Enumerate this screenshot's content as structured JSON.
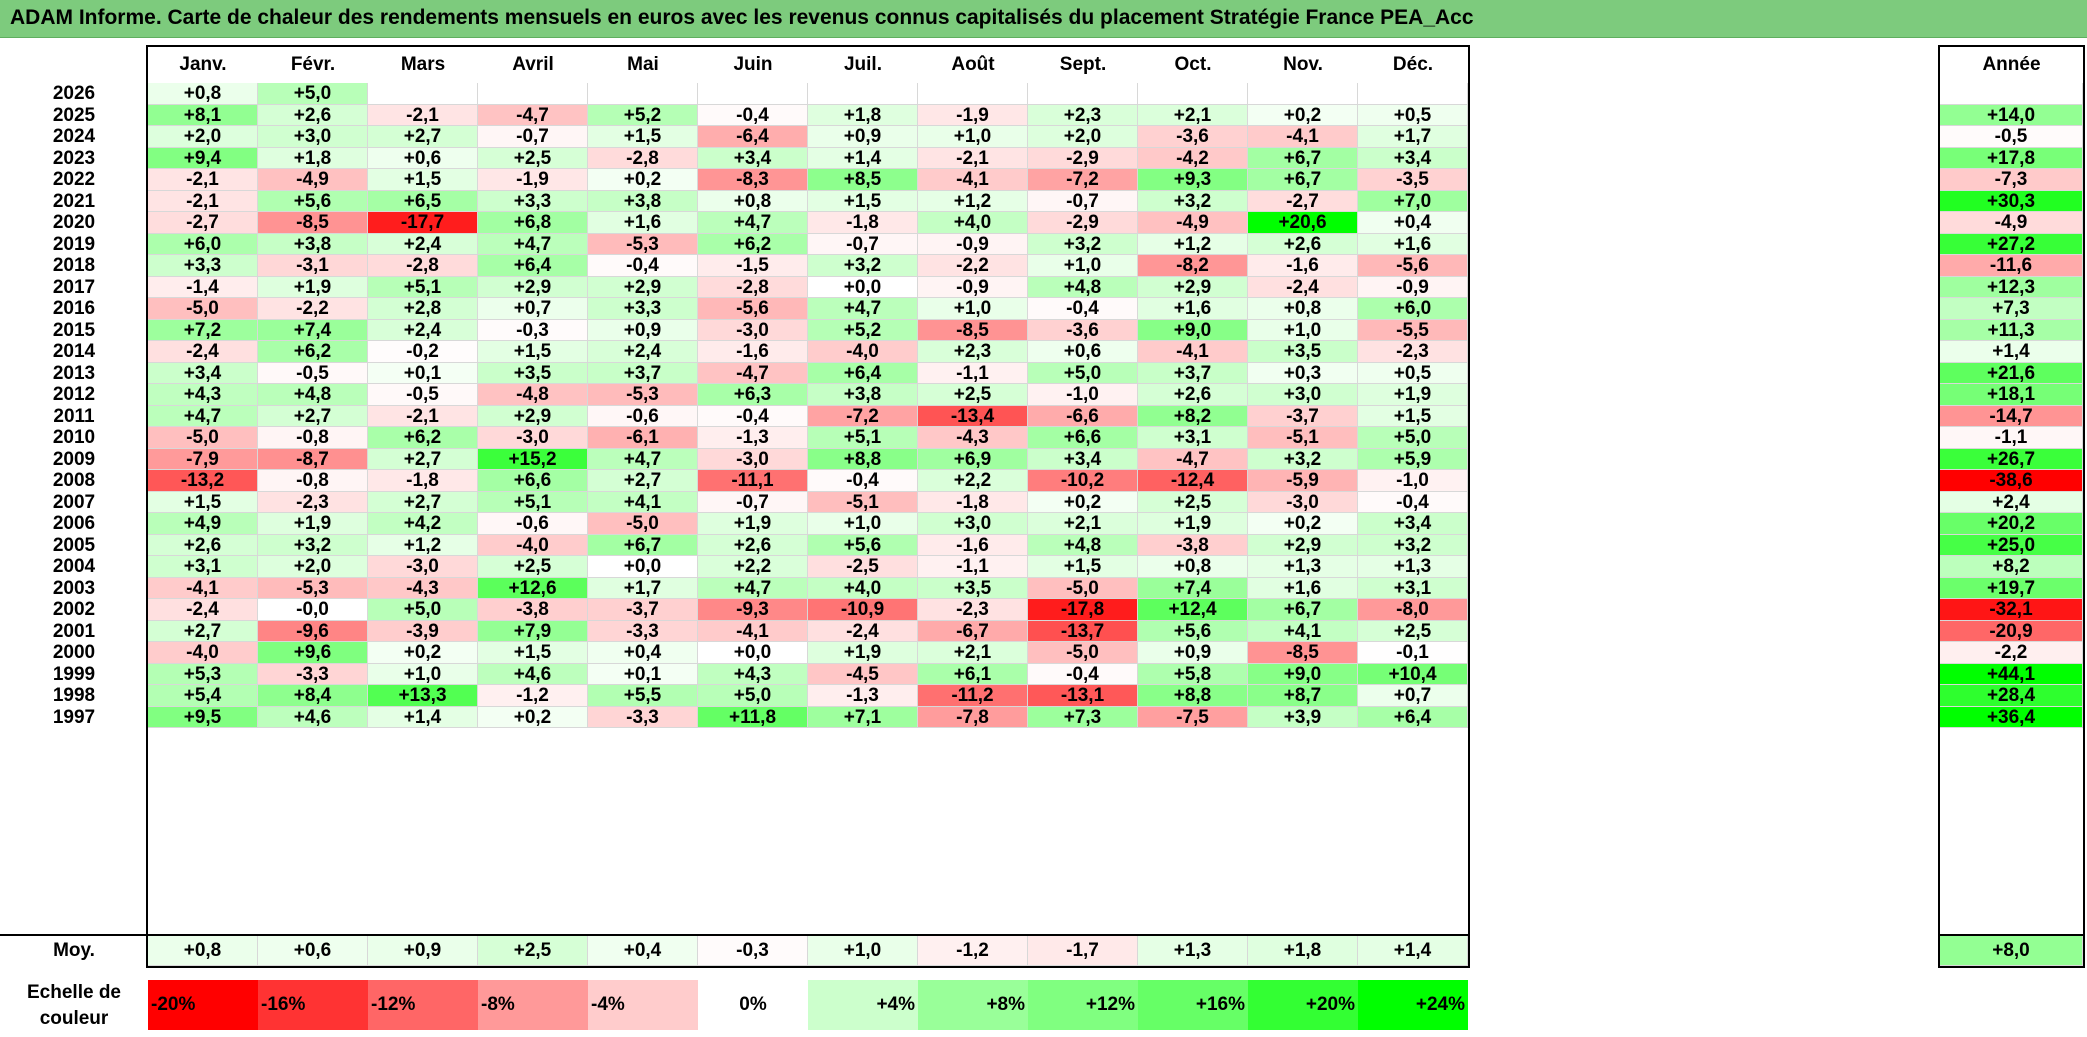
{
  "title": "ADAM Informe. Carte de chaleur des rendements mensuels en euros avec les revenus connus capitalisés du placement Stratégie France PEA_Acc",
  "chart_data": {
    "type": "heatmap",
    "title": "ADAM Informe. Carte de chaleur des rendements mensuels en euros avec les revenus connus capitalisés du placement Stratégie France PEA_Acc",
    "columns": [
      "Janv.",
      "Févr.",
      "Mars",
      "Avril",
      "Mai",
      "Juin",
      "Juil.",
      "Août",
      "Sept.",
      "Oct.",
      "Nov.",
      "Déc."
    ],
    "annual_header": "Année",
    "rows": [
      {
        "year": "2026",
        "values": [
          "+0,8",
          "+5,0",
          "",
          "",
          "",
          "",
          "",
          "",
          "",
          "",
          "",
          ""
        ],
        "annual": ""
      },
      {
        "year": "2025",
        "values": [
          "+8,1",
          "+2,6",
          "-2,1",
          "-4,7",
          "+5,2",
          "-0,4",
          "+1,8",
          "-1,9",
          "+2,3",
          "+2,1",
          "+0,2",
          "+0,5"
        ],
        "annual": "+14,0"
      },
      {
        "year": "2024",
        "values": [
          "+2,0",
          "+3,0",
          "+2,7",
          "-0,7",
          "+1,5",
          "-6,4",
          "+0,9",
          "+1,0",
          "+2,0",
          "-3,6",
          "-4,1",
          "+1,7"
        ],
        "annual": "-0,5"
      },
      {
        "year": "2023",
        "values": [
          "+9,4",
          "+1,8",
          "+0,6",
          "+2,5",
          "-2,8",
          "+3,4",
          "+1,4",
          "-2,1",
          "-2,9",
          "-4,2",
          "+6,7",
          "+3,4"
        ],
        "annual": "+17,8"
      },
      {
        "year": "2022",
        "values": [
          "-2,1",
          "-4,9",
          "+1,5",
          "-1,9",
          "+0,2",
          "-8,3",
          "+8,5",
          "-4,1",
          "-7,2",
          "+9,3",
          "+6,7",
          "-3,5"
        ],
        "annual": "-7,3"
      },
      {
        "year": "2021",
        "values": [
          "-2,1",
          "+5,6",
          "+6,5",
          "+3,3",
          "+3,8",
          "+0,8",
          "+1,5",
          "+1,2",
          "-0,7",
          "+3,2",
          "-2,7",
          "+7,0"
        ],
        "annual": "+30,3"
      },
      {
        "year": "2020",
        "values": [
          "-2,7",
          "-8,5",
          "-17,7",
          "+6,8",
          "+1,6",
          "+4,7",
          "-1,8",
          "+4,0",
          "-2,9",
          "-4,9",
          "+20,6",
          "+0,4"
        ],
        "annual": "-4,9"
      },
      {
        "year": "2019",
        "values": [
          "+6,0",
          "+3,8",
          "+2,4",
          "+4,7",
          "-5,3",
          "+6,2",
          "-0,7",
          "-0,9",
          "+3,2",
          "+1,2",
          "+2,6",
          "+1,6"
        ],
        "annual": "+27,2"
      },
      {
        "year": "2018",
        "values": [
          "+3,3",
          "-3,1",
          "-2,8",
          "+6,4",
          "-0,4",
          "-1,5",
          "+3,2",
          "-2,2",
          "+1,0",
          "-8,2",
          "-1,6",
          "-5,6"
        ],
        "annual": "-11,6"
      },
      {
        "year": "2017",
        "values": [
          "-1,4",
          "+1,9",
          "+5,1",
          "+2,9",
          "+2,9",
          "-2,8",
          "+0,0",
          "-0,9",
          "+4,8",
          "+2,9",
          "-2,4",
          "-0,9"
        ],
        "annual": "+12,3"
      },
      {
        "year": "2016",
        "values": [
          "-5,0",
          "-2,2",
          "+2,8",
          "+0,7",
          "+3,3",
          "-5,6",
          "+4,7",
          "+1,0",
          "-0,4",
          "+1,6",
          "+0,8",
          "+6,0"
        ],
        "annual": "+7,3"
      },
      {
        "year": "2015",
        "values": [
          "+7,2",
          "+7,4",
          "+2,4",
          "-0,3",
          "+0,9",
          "-3,0",
          "+5,2",
          "-8,5",
          "-3,6",
          "+9,0",
          "+1,0",
          "-5,5"
        ],
        "annual": "+11,3"
      },
      {
        "year": "2014",
        "values": [
          "-2,4",
          "+6,2",
          "-0,2",
          "+1,5",
          "+2,4",
          "-1,6",
          "-4,0",
          "+2,3",
          "+0,6",
          "-4,1",
          "+3,5",
          "-2,3"
        ],
        "annual": "+1,4"
      },
      {
        "year": "2013",
        "values": [
          "+3,4",
          "-0,5",
          "+0,1",
          "+3,5",
          "+3,7",
          "-4,7",
          "+6,4",
          "-1,1",
          "+5,0",
          "+3,7",
          "+0,3",
          "+0,5"
        ],
        "annual": "+21,6"
      },
      {
        "year": "2012",
        "values": [
          "+4,3",
          "+4,8",
          "-0,5",
          "-4,8",
          "-5,3",
          "+6,3",
          "+3,8",
          "+2,5",
          "-1,0",
          "+2,6",
          "+3,0",
          "+1,9"
        ],
        "annual": "+18,1"
      },
      {
        "year": "2011",
        "values": [
          "+4,7",
          "+2,7",
          "-2,1",
          "+2,9",
          "-0,6",
          "-0,4",
          "-7,2",
          "-13,4",
          "-6,6",
          "+8,2",
          "-3,7",
          "+1,5"
        ],
        "annual": "-14,7"
      },
      {
        "year": "2010",
        "values": [
          "-5,0",
          "-0,8",
          "+6,2",
          "-3,0",
          "-6,1",
          "-1,3",
          "+5,1",
          "-4,3",
          "+6,6",
          "+3,1",
          "-5,1",
          "+5,0"
        ],
        "annual": "-1,1"
      },
      {
        "year": "2009",
        "values": [
          "-7,9",
          "-8,7",
          "+2,7",
          "+15,2",
          "+4,7",
          "-3,0",
          "+8,8",
          "+6,9",
          "+3,4",
          "-4,7",
          "+3,2",
          "+5,9"
        ],
        "annual": "+26,7"
      },
      {
        "year": "2008",
        "values": [
          "-13,2",
          "-0,8",
          "-1,8",
          "+6,6",
          "+2,7",
          "-11,1",
          "-0,4",
          "+2,2",
          "-10,2",
          "-12,4",
          "-5,9",
          "-1,0"
        ],
        "annual": "-38,6"
      },
      {
        "year": "2007",
        "values": [
          "+1,5",
          "-2,3",
          "+2,7",
          "+5,1",
          "+4,1",
          "-0,7",
          "-5,1",
          "-1,8",
          "+0,2",
          "+2,5",
          "-3,0",
          "-0,4"
        ],
        "annual": "+2,4"
      },
      {
        "year": "2006",
        "values": [
          "+4,9",
          "+1,9",
          "+4,2",
          "-0,6",
          "-5,0",
          "+1,9",
          "+1,0",
          "+3,0",
          "+2,1",
          "+1,9",
          "+0,2",
          "+3,4"
        ],
        "annual": "+20,2"
      },
      {
        "year": "2005",
        "values": [
          "+2,6",
          "+3,2",
          "+1,2",
          "-4,0",
          "+6,7",
          "+2,6",
          "+5,6",
          "-1,6",
          "+4,8",
          "-3,8",
          "+2,9",
          "+3,2"
        ],
        "annual": "+25,0"
      },
      {
        "year": "2004",
        "values": [
          "+3,1",
          "+2,0",
          "-3,0",
          "+2,5",
          "+0,0",
          "+2,2",
          "-2,5",
          "-1,1",
          "+1,5",
          "+0,8",
          "+1,3",
          "+1,3"
        ],
        "annual": "+8,2"
      },
      {
        "year": "2003",
        "values": [
          "-4,1",
          "-5,3",
          "-4,3",
          "+12,6",
          "+1,7",
          "+4,7",
          "+4,0",
          "+3,5",
          "-5,0",
          "+7,4",
          "+1,6",
          "+3,1"
        ],
        "annual": "+19,7"
      },
      {
        "year": "2002",
        "values": [
          "-2,4",
          "-0,0",
          "+5,0",
          "-3,8",
          "-3,7",
          "-9,3",
          "-10,9",
          "-2,3",
          "-17,8",
          "+12,4",
          "+6,7",
          "-8,0"
        ],
        "annual": "-32,1"
      },
      {
        "year": "2001",
        "values": [
          "+2,7",
          "-9,6",
          "-3,9",
          "+7,9",
          "-3,3",
          "-4,1",
          "-2,4",
          "-6,7",
          "-13,7",
          "+5,6",
          "+4,1",
          "+2,5"
        ],
        "annual": "-20,9"
      },
      {
        "year": "2000",
        "values": [
          "-4,0",
          "+9,6",
          "+0,2",
          "+1,5",
          "+0,4",
          "+0,0",
          "+1,9",
          "+2,1",
          "-5,0",
          "+0,9",
          "-8,5",
          "-0,1"
        ],
        "annual": "-2,2"
      },
      {
        "year": "1999",
        "values": [
          "+5,3",
          "-3,3",
          "+1,0",
          "+4,6",
          "+0,1",
          "+4,3",
          "-4,5",
          "+6,1",
          "-0,4",
          "+5,8",
          "+9,0",
          "+10,4"
        ],
        "annual": "+44,1"
      },
      {
        "year": "1998",
        "values": [
          "+5,4",
          "+8,4",
          "+13,3",
          "-1,2",
          "+5,5",
          "+5,0",
          "-1,3",
          "-11,2",
          "-13,1",
          "+8,8",
          "+8,7",
          "+0,7"
        ],
        "annual": "+28,4"
      },
      {
        "year": "1997",
        "values": [
          "+9,5",
          "+4,6",
          "+1,4",
          "+0,2",
          "-3,3",
          "+11,8",
          "+7,1",
          "-7,8",
          "+7,3",
          "-7,5",
          "+3,9",
          "+6,4"
        ],
        "annual": "+36,4"
      }
    ],
    "average": {
      "label": "Moy.",
      "values": [
        "+0,8",
        "+0,6",
        "+0,9",
        "+2,5",
        "+0,4",
        "-0,3",
        "+1,0",
        "-1,2",
        "-1,7",
        "+1,3",
        "+1,8",
        "+1,4"
      ],
      "annual": "+8,0"
    },
    "color_scale": {
      "label": "Echelle de couleur",
      "stops": [
        {
          "label": "-20%",
          "value": -20,
          "color": "#ff0000"
        },
        {
          "label": "-16%",
          "value": -16,
          "color": "#ff3333"
        },
        {
          "label": "-12%",
          "value": -12,
          "color": "#ff6666"
        },
        {
          "label": "-8%",
          "value": -8,
          "color": "#ff9999"
        },
        {
          "label": "-4%",
          "value": -4,
          "color": "#ffcccc"
        },
        {
          "label": "0%",
          "value": 0,
          "color": "#ffffff"
        },
        {
          "label": "+4%",
          "value": 4,
          "color": "#ccffcc"
        },
        {
          "label": "+8%",
          "value": 8,
          "color": "#99ff99"
        },
        {
          "label": "+12%",
          "value": 12,
          "color": "#80ff80"
        },
        {
          "label": "+16%",
          "value": 16,
          "color": "#66ff66"
        },
        {
          "label": "+20%",
          "value": 20,
          "color": "#33ff33"
        },
        {
          "label": "+24%",
          "value": 24,
          "color": "#00ff00"
        }
      ]
    }
  }
}
